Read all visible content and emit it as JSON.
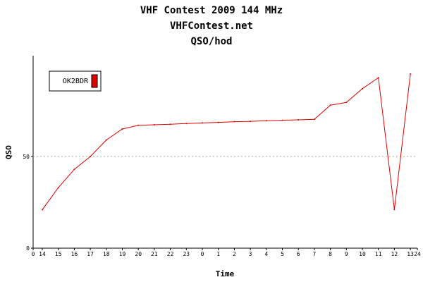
{
  "chart_data": {
    "type": "line",
    "title_lines": [
      "VHF Contest 2009 144 MHz",
      "VHFContest.net",
      "QSO/hod"
    ],
    "xlabel": "Time",
    "ylabel": "QSO",
    "x_ticks": [
      "0",
      "14",
      "15",
      "16",
      "17",
      "18",
      "19",
      "20",
      "21",
      "22",
      "23",
      "0",
      "1",
      "2",
      "3",
      "4",
      "5",
      "6",
      "7",
      "8",
      "9",
      "10",
      "11",
      "12",
      "13",
      "24"
    ],
    "y_ticks": [
      0,
      50
    ],
    "ylim": [
      0,
      105
    ],
    "grid": "horizontal-dashed-at-50",
    "legend_position": "top-left",
    "series": [
      {
        "name": "OK2BDR",
        "color": "#dd0000",
        "x": [
          "14",
          "15",
          "16",
          "17",
          "18",
          "19",
          "20",
          "21",
          "22",
          "23",
          "0",
          "1",
          "2",
          "3",
          "4",
          "5",
          "6",
          "7",
          "8",
          "9",
          "10",
          "11",
          "12",
          "13"
        ],
        "values": [
          21,
          33,
          43,
          50,
          59,
          65,
          67,
          67.3,
          67.6,
          68,
          68.3,
          68.6,
          69,
          69.2,
          69.5,
          69.8,
          70,
          70.3,
          78,
          79.5,
          87,
          93,
          21,
          95
        ]
      }
    ]
  }
}
